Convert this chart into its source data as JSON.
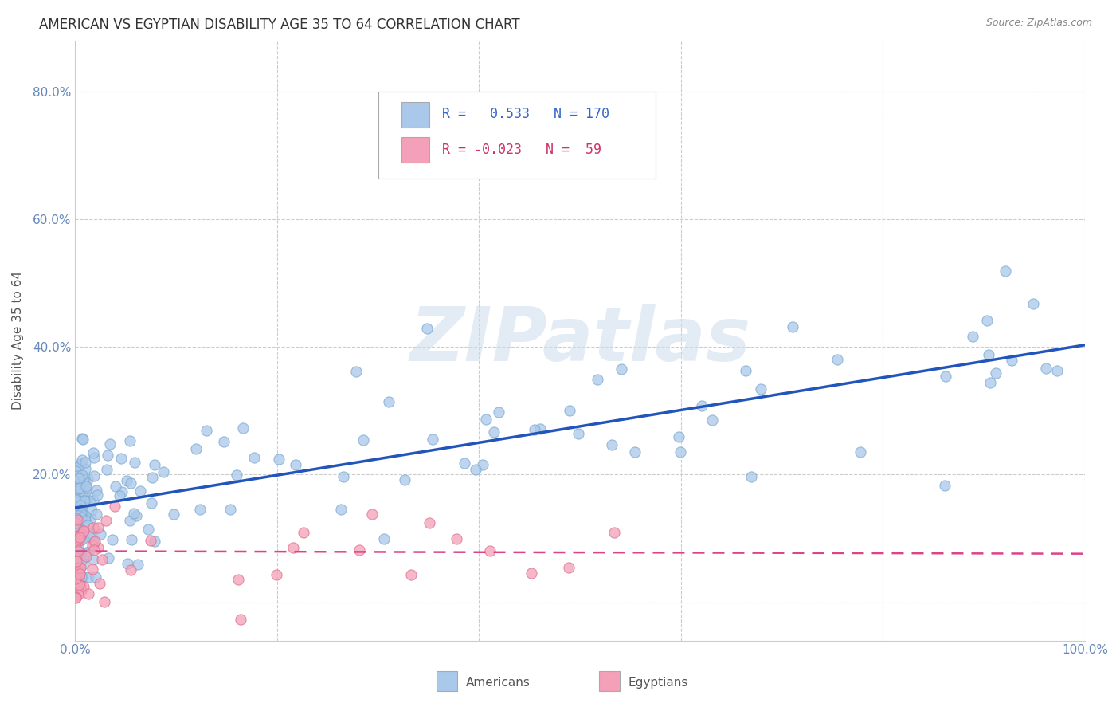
{
  "title": "AMERICAN VS EGYPTIAN DISABILITY AGE 35 TO 64 CORRELATION CHART",
  "source": "Source: ZipAtlas.com",
  "ylabel": "Disability Age 35 to 64",
  "ytick_vals": [
    0.0,
    0.2,
    0.4,
    0.6,
    0.8
  ],
  "ytick_labels": [
    "",
    "20.0%",
    "40.0%",
    "60.0%",
    "80.0%"
  ],
  "xtick_vals": [
    0.0,
    0.2,
    0.4,
    0.6,
    0.8,
    1.0
  ],
  "xtick_labels": [
    "0.0%",
    "",
    "",
    "",
    "",
    "100.0%"
  ],
  "xlim": [
    0.0,
    1.0
  ],
  "ylim": [
    -0.06,
    0.88
  ],
  "watermark": "ZIPatlas",
  "americans_color": "#aac8ea",
  "americans_edge_color": "#7aaad0",
  "americans_line_color": "#2255bb",
  "egyptians_color": "#f4a0b8",
  "egyptians_edge_color": "#e07090",
  "egyptians_line_color": "#dd4488",
  "americans_intercept": 0.148,
  "americans_slope": 0.255,
  "egyptians_intercept": 0.08,
  "egyptians_slope": -0.004,
  "background_color": "#ffffff",
  "grid_color": "#cccccc",
  "title_fontsize": 12,
  "axis_fontsize": 11,
  "marker_size": 90,
  "marker_alpha": 0.75
}
